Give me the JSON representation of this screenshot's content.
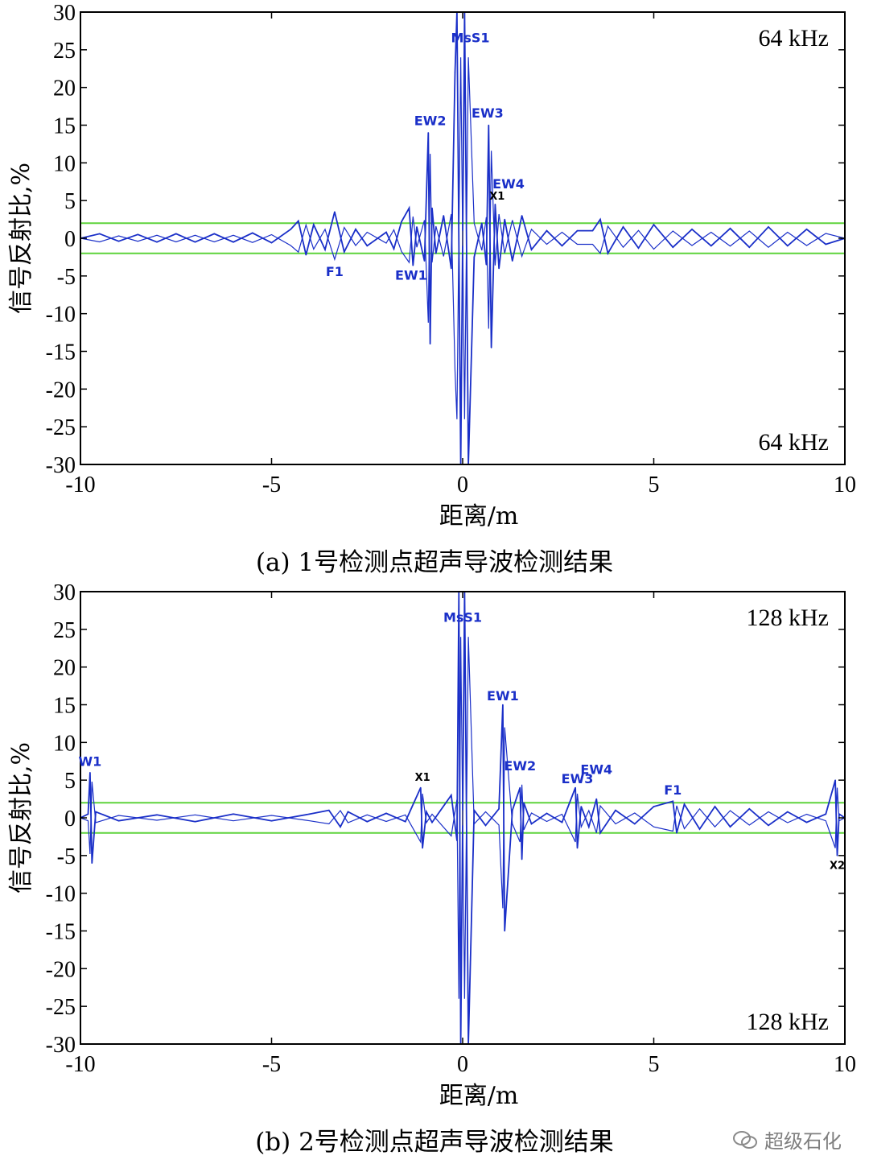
{
  "figure": {
    "captions": [
      "(a) 1号检测点超声导波检测结果",
      "(b) 2号检测点超声导波检测结果"
    ],
    "watermark": "超级石化"
  },
  "chart_data": [
    {
      "type": "line",
      "frequency_label_top": "64 kHz",
      "frequency_label_bottom": "64 kHz",
      "xlabel": "距离/m",
      "ylabel": "信号反射比,%",
      "xlim": [
        -10,
        10
      ],
      "ylim": [
        -30,
        30
      ],
      "xticks": [
        -10,
        -5,
        0,
        5,
        10
      ],
      "yticks": [
        30,
        25,
        20,
        15,
        10,
        5,
        0,
        -5,
        -10,
        -15,
        -20,
        -25,
        -30
      ],
      "threshold_lines": [
        2,
        -2
      ],
      "colors": {
        "signal": "#1a2fc8",
        "threshold": "#5fd33c",
        "axis": "#000000"
      },
      "series": [
        {
          "x": [
            -10,
            -9.5,
            -9,
            -8.5,
            -8,
            -7.5,
            -7,
            -6.5,
            -6,
            -5.5,
            -5,
            -4.5,
            -4.3,
            -4.1,
            -3.9,
            -3.6,
            -3.35,
            -3.1,
            -2.8,
            -2.5,
            -2,
            -1.8,
            -1.6,
            -1.4,
            -1.3,
            -1.2,
            -1.0,
            -0.9,
            -0.85,
            -0.8,
            -0.7,
            -0.5,
            -0.3,
            -0.2,
            -0.15,
            -0.05,
            0.05,
            0.15,
            0.3,
            0.5,
            0.62,
            0.68,
            0.75,
            0.85,
            0.95,
            1.1,
            1.3,
            1.55,
            1.8,
            2.2,
            2.6,
            3.0,
            3.4,
            3.6,
            3.8,
            4.2,
            4.6,
            5.0,
            5.5,
            6,
            6.5,
            7,
            7.5,
            8,
            8.5,
            9,
            9.5,
            10
          ],
          "values": [
            0,
            0.6,
            -0.4,
            0.5,
            -0.5,
            0.6,
            -0.5,
            0.6,
            -0.5,
            0.7,
            -0.6,
            1.2,
            2.3,
            -2.2,
            1.8,
            -1.5,
            3.5,
            -1.8,
            1.2,
            -1.0,
            0.8,
            -1.4,
            2.2,
            4.0,
            -3.6,
            1.5,
            -3.0,
            14.0,
            -14.0,
            4.0,
            -2.0,
            3.0,
            -4.0,
            22.0,
            30,
            -30,
            30,
            -30,
            -2.5,
            2.0,
            -3.5,
            15.0,
            -14.5,
            4.5,
            -4.0,
            2.5,
            -3.0,
            3.0,
            -1.5,
            1.0,
            -1.0,
            1.0,
            1.0,
            2.5,
            -2.0,
            1.5,
            -1.3,
            1.8,
            -1.2,
            1.2,
            -1.0,
            1.3,
            -1.2,
            1.5,
            -1.0,
            1.2,
            -0.8,
            0
          ]
        }
      ],
      "annotations": [
        {
          "text": "MsS1",
          "x": 0.2,
          "y": 26,
          "color": "blue"
        },
        {
          "text": "EW2",
          "x": -0.85,
          "y": 15,
          "color": "blue"
        },
        {
          "text": "EW3",
          "x": 0.65,
          "y": 16,
          "color": "blue"
        },
        {
          "text": "EW4",
          "x": 1.2,
          "y": 6.6,
          "color": "blue"
        },
        {
          "text": "X1",
          "x": 0.9,
          "y": 5.1,
          "color": "black"
        },
        {
          "text": "F1",
          "x": -3.35,
          "y": -5.0,
          "color": "blue"
        },
        {
          "text": "EW1",
          "x": -1.35,
          "y": -5.5,
          "color": "blue"
        }
      ]
    },
    {
      "type": "line",
      "frequency_label_top": "128 kHz",
      "frequency_label_bottom": "128 kHz",
      "xlabel": "距离/m",
      "ylabel": "信号反射比,%",
      "xlim": [
        -10,
        10
      ],
      "ylim": [
        -30,
        30
      ],
      "xticks": [
        -10,
        -5,
        0,
        5,
        10
      ],
      "yticks": [
        30,
        25,
        20,
        15,
        10,
        5,
        0,
        -5,
        -10,
        -15,
        -20,
        -25,
        -30
      ],
      "threshold_lines": [
        2,
        -2
      ],
      "colors": {
        "signal": "#1a2fc8",
        "threshold": "#5fd33c",
        "axis": "#000000"
      },
      "series": [
        {
          "x": [
            -10,
            -9.8,
            -9.75,
            -9.7,
            -9.6,
            -9,
            -8,
            -7,
            -6,
            -5,
            -4,
            -3.5,
            -3.2,
            -3.0,
            -2.5,
            -2,
            -1.5,
            -1.1,
            -1.05,
            -0.95,
            -0.8,
            -0.3,
            -0.15,
            -0.1,
            -0.05,
            0.05,
            0.15,
            0.3,
            0.6,
            0.95,
            1.05,
            1.1,
            1.3,
            1.5,
            1.55,
            1.6,
            1.8,
            2.2,
            2.6,
            2.95,
            3.0,
            3.1,
            3.3,
            3.5,
            3.6,
            4.0,
            4.5,
            5.0,
            5.5,
            5.6,
            5.8,
            6.2,
            6.6,
            7.0,
            7.5,
            8,
            8.5,
            9,
            9.5,
            9.75,
            9.8,
            9.85,
            10
          ],
          "values": [
            0,
            0.5,
            6.0,
            -6.0,
            0.8,
            -0.4,
            0.4,
            -0.5,
            0.5,
            -0.4,
            0.5,
            1.0,
            -1.2,
            0.8,
            -0.5,
            0.6,
            -0.5,
            4.0,
            -4.0,
            0.8,
            -0.6,
            3.0,
            -3.0,
            30,
            -30,
            30,
            -30,
            1.0,
            -1.0,
            1.2,
            15.0,
            -15.0,
            1.0,
            4.0,
            -5.5,
            2.0,
            -0.8,
            0.6,
            -0.6,
            4.0,
            -4.0,
            1.5,
            -1.2,
            2.5,
            -2.0,
            1.0,
            -0.8,
            1.5,
            2.2,
            -2.0,
            1.8,
            -1.5,
            1.5,
            -1.2,
            1.2,
            -1.0,
            0.8,
            -0.6,
            0.5,
            5.0,
            -5.0,
            0.5,
            0
          ]
        }
      ],
      "annotations": [
        {
          "text": "MsS1",
          "x": 0,
          "y": 26,
          "color": "blue"
        },
        {
          "text": "EW1",
          "x": 1.05,
          "y": 15.6,
          "color": "blue"
        },
        {
          "text": "EW2",
          "x": 1.5,
          "y": 6.3,
          "color": "blue"
        },
        {
          "text": "EW3",
          "x": 3.0,
          "y": 4.6,
          "color": "blue"
        },
        {
          "text": "EW4",
          "x": 3.5,
          "y": 5.8,
          "color": "blue"
        },
        {
          "text": "F1",
          "x": 5.5,
          "y": 3.1,
          "color": "blue"
        },
        {
          "text": "W1",
          "x": -9.75,
          "y": 6.9,
          "color": "blue"
        },
        {
          "text": "X1",
          "x": -1.05,
          "y": 4.9,
          "color": "black"
        },
        {
          "text": "X2",
          "x": 9.8,
          "y": -6.8,
          "color": "black"
        }
      ]
    }
  ]
}
